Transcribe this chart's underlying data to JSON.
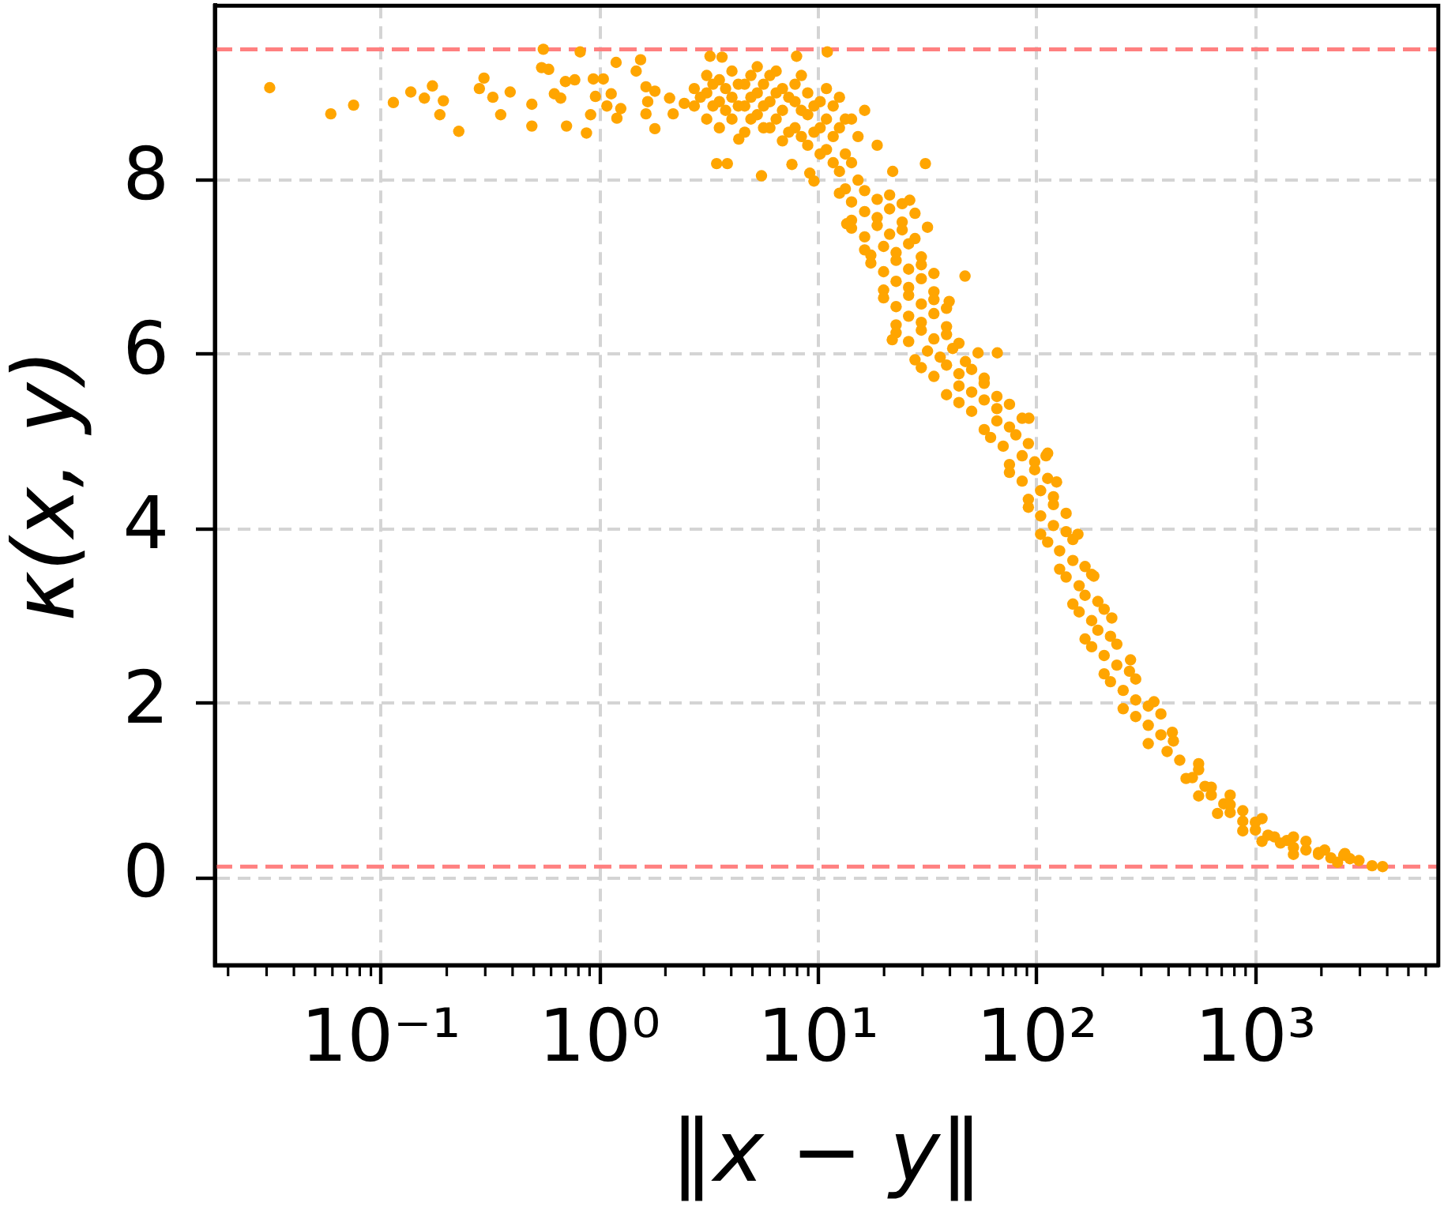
{
  "chart_data": {
    "type": "scatter",
    "xlabel": "‖x − y‖",
    "ylabel": "κ(x, y)",
    "color": "#ffa500",
    "marker": "circle",
    "log": "x",
    "grid": true,
    "xlim": [
      0.0174,
      6850
    ],
    "ylim": [
      -1,
      10
    ],
    "xticks": [
      {
        "value": 0.02,
        "label": null
      },
      {
        "value": 0.03,
        "label": null
      },
      {
        "value": 0.04,
        "label": null
      },
      {
        "value": 0.05,
        "label": null
      },
      {
        "value": 0.06,
        "label": null
      },
      {
        "value": 0.07,
        "label": null
      },
      {
        "value": 0.08,
        "label": null
      },
      {
        "value": 0.09,
        "label": null
      },
      {
        "value": 0.1,
        "label": "10⁻¹"
      },
      {
        "value": 0.2,
        "label": null
      },
      {
        "value": 0.3,
        "label": null
      },
      {
        "value": 0.4,
        "label": null
      },
      {
        "value": 0.5,
        "label": null
      },
      {
        "value": 0.6,
        "label": null
      },
      {
        "value": 0.7,
        "label": null
      },
      {
        "value": 0.8,
        "label": null
      },
      {
        "value": 0.9,
        "label": null
      },
      {
        "value": 1,
        "label": "10⁰"
      },
      {
        "value": 2,
        "label": null
      },
      {
        "value": 3,
        "label": null
      },
      {
        "value": 4,
        "label": null
      },
      {
        "value": 5,
        "label": null
      },
      {
        "value": 6,
        "label": null
      },
      {
        "value": 7,
        "label": null
      },
      {
        "value": 8,
        "label": null
      },
      {
        "value": 9,
        "label": null
      },
      {
        "value": 10,
        "label": "10¹"
      },
      {
        "value": 20,
        "label": null
      },
      {
        "value": 30,
        "label": null
      },
      {
        "value": 40,
        "label": null
      },
      {
        "value": 50,
        "label": null
      },
      {
        "value": 60,
        "label": null
      },
      {
        "value": 70,
        "label": null
      },
      {
        "value": 80,
        "label": null
      },
      {
        "value": 90,
        "label": null
      },
      {
        "value": 100,
        "label": "10²"
      },
      {
        "value": 200,
        "label": null
      },
      {
        "value": 300,
        "label": null
      },
      {
        "value": 400,
        "label": null
      },
      {
        "value": 500,
        "label": null
      },
      {
        "value": 600,
        "label": null
      },
      {
        "value": 700,
        "label": null
      },
      {
        "value": 800,
        "label": null
      },
      {
        "value": 900,
        "label": null
      },
      {
        "value": 1000,
        "label": "10³"
      },
      {
        "value": 2000,
        "label": null
      },
      {
        "value": 3000,
        "label": null
      },
      {
        "value": 4000,
        "label": null
      },
      {
        "value": 5000,
        "label": null
      },
      {
        "value": 6000,
        "label": null
      }
    ],
    "yticks": [
      0,
      2,
      4,
      6,
      8
    ],
    "ref_lines": [
      {
        "axis": "y",
        "value": 9.5,
        "color": "#ff8080",
        "line_style": "dashed"
      },
      {
        "axis": "y",
        "value": 0.13,
        "color": "#ff8080",
        "line_style": "dashed"
      }
    ],
    "x": [
      0.031,
      0.059,
      0.075,
      0.114,
      0.137,
      0.158,
      0.172,
      0.186,
      0.193,
      0.227,
      0.282,
      0.296,
      0.325,
      0.353,
      0.39,
      0.49,
      0.49,
      0.543,
      0.553,
      0.585,
      0.621,
      0.664,
      0.698,
      0.706,
      0.77,
      0.815,
      0.871,
      0.91,
      0.936,
      0.957,
      1.04,
      1.08,
      1.13,
      1.19,
      1.2,
      1.25,
      1.47,
      1.54,
      1.63,
      1.63,
      1.66,
      1.79,
      1.79,
      2.09,
      2.17,
      2.44,
      2.71,
      2.71,
      3.09,
      3.09,
      3.09,
      3.2,
      3.43,
      3.53,
      3.53,
      3.53,
      3.63,
      3.84,
      4.03,
      4.03,
      4.03,
      4.33,
      4.61,
      4.61,
      4.61,
      5.26,
      5.26,
      5.26,
      5.5,
      6.01,
      6.01,
      6.01,
      6.86,
      6.86,
      6.86,
      7.58,
      7.83,
      7.83,
      7.83,
      7.96,
      8.95,
      8.95,
      8.95,
      9.15,
      9.56,
      10.2,
      10.2,
      10.2,
      11,
      11.7,
      11.7,
      11.7,
      13.3,
      13.3,
      13.3,
      15.2,
      15.2,
      16.3,
      2.89,
      3.3,
      3.3,
      3.77,
      3.77,
      4.31,
      4.31,
      4.92,
      4.92,
      4.92,
      5.62,
      5.62,
      5.62,
      6.42,
      6.42,
      6.42,
      7.33,
      7.33,
      8.37,
      8.37,
      8.37,
      9.56,
      9.56,
      10.9,
      10.9,
      10.9,
      12.5,
      12.5,
      12.5,
      14.2,
      14.2,
      12.5,
      14.2,
      16.3,
      18.6,
      21.2,
      24.2,
      14.2,
      16.3,
      18.6,
      21.2,
      24.2,
      27.7,
      14.2,
      16.3,
      18.6,
      21.2,
      24.2,
      27.7,
      31.6,
      17.4,
      19.9,
      22.7,
      25.9,
      29.6,
      17.4,
      19.9,
      22.7,
      25.9,
      29.6,
      33.8,
      19.9,
      22.7,
      25.9,
      29.6,
      33.8,
      19.9,
      22.7,
      25.9,
      29.6,
      33.8,
      38.6,
      22.7,
      25.9,
      29.6,
      33.8,
      38.6,
      22.7,
      25.9,
      29.6,
      33.8,
      38.6,
      44,
      27.7,
      31.6,
      36.1,
      41.2,
      47.1,
      53.8,
      29.6,
      33.8,
      38.6,
      44,
      50.3,
      57.4,
      38.6,
      44,
      50.3,
      57.4,
      65.6,
      44,
      50.3,
      57.4,
      65.6,
      74.9,
      57.4,
      65.6,
      74.9,
      85.6,
      61.4,
      70.1,
      80.1,
      91.4,
      74.9,
      85.6,
      97.7,
      112,
      74.9,
      85.6,
      97.7,
      112,
      91.4,
      104,
      119,
      91.4,
      104,
      119,
      136,
      104,
      119,
      136,
      112,
      127,
      146,
      127,
      146,
      166,
      136,
      156,
      178,
      146,
      166,
      190,
      156,
      178,
      203,
      166,
      190,
      217,
      178,
      203,
      232,
      203,
      232,
      265,
      217,
      248,
      283,
      248,
      283,
      323,
      283,
      323,
      369,
      323,
      369,
      421,
      394,
      450,
      481,
      549,
      514,
      587,
      549,
      627,
      627,
      716,
      670,
      765,
      874,
      765,
      874,
      874,
      998,
      998,
      1140,
      1070,
      1220,
      1390,
      1300,
      1490,
      1700,
      1490,
      1700,
      1940,
      1940,
      2210,
      2530,
      2370,
      2700,
      13.5,
      16.3,
      18.6,
      21.8,
      21.9,
      26.2,
      30.9,
      39.7,
      46.9,
      65.9,
      91.9,
      110,
      123,
      154,
      182,
      220,
      268,
      343,
      416,
      549,
      765,
      1070,
      1490,
      2070,
      2560,
      2970,
      3410,
      3810
    ],
    "values": [
      9.06,
      8.76,
      8.86,
      8.89,
      9.01,
      8.94,
      9.08,
      8.75,
      8.91,
      8.56,
      9.05,
      9.17,
      8.95,
      8.75,
      9.01,
      8.87,
      8.62,
      9.29,
      9.5,
      9.27,
      8.99,
      8.94,
      9.13,
      8.62,
      9.15,
      9.47,
      8.54,
      8.75,
      9.16,
      8.96,
      9.16,
      8.85,
      8.99,
      9.35,
      8.71,
      8.82,
      9.25,
      9.38,
      9.07,
      8.76,
      8.9,
      9.02,
      8.59,
      8.94,
      8.76,
      8.88,
      8.85,
      9.05,
      8.7,
      9.0,
      9.2,
      9.42,
      8.19,
      8.6,
      8.9,
      9.15,
      9.41,
      8.19,
      8.7,
      8.95,
      9.25,
      8.47,
      8.55,
      8.85,
      9.1,
      8.75,
      9.0,
      9.3,
      8.05,
      8.6,
      8.9,
      9.2,
      8.45,
      8.8,
      9.05,
      8.18,
      8.6,
      8.9,
      9.1,
      9.42,
      8.4,
      8.75,
      9.0,
      8.08,
      7.99,
      8.3,
      8.6,
      8.9,
      9.47,
      8.2,
      8.5,
      8.85,
      7.9,
      8.3,
      8.7,
      8.0,
      8.5,
      8.8,
      8.95,
      8.85,
      9.1,
      8.8,
      9.05,
      8.85,
      9.1,
      8.7,
      8.95,
      9.2,
      8.6,
      8.85,
      9.1,
      8.7,
      9.0,
      9.25,
      8.55,
      8.95,
      8.5,
      8.8,
      9.2,
      8.55,
      8.85,
      8.35,
      8.7,
      9.05,
      8.1,
      8.6,
      8.95,
      8.2,
      8.7,
      7.85,
      7.75,
      7.88,
      7.78,
      7.83,
      7.73,
      7.54,
      7.64,
      7.57,
      7.67,
      7.52,
      7.62,
      7.45,
      7.35,
      7.48,
      7.38,
      7.43,
      7.33,
      7.46,
      7.14,
      7.24,
      7.17,
      7.27,
      7.12,
      7.05,
      6.95,
      7.08,
      6.98,
      7.03,
      6.93,
      6.74,
      6.84,
      6.77,
      6.87,
      6.72,
      6.65,
      6.55,
      6.68,
      6.58,
      6.63,
      6.53,
      6.34,
      6.44,
      6.37,
      6.47,
      6.32,
      6.25,
      6.15,
      6.28,
      6.18,
      6.23,
      6.13,
      5.94,
      6.04,
      5.97,
      6.07,
      5.92,
      6.02,
      5.85,
      5.75,
      5.88,
      5.78,
      5.83,
      5.73,
      5.54,
      5.64,
      5.57,
      5.67,
      5.52,
      5.45,
      5.35,
      5.48,
      5.38,
      5.43,
      5.14,
      5.24,
      5.17,
      5.27,
      5.05,
      4.95,
      5.08,
      4.98,
      4.74,
      4.84,
      4.77,
      4.87,
      4.65,
      4.55,
      4.68,
      4.58,
      4.34,
      4.44,
      4.37,
      4.25,
      4.15,
      4.28,
      4.18,
      3.94,
      4.04,
      3.97,
      3.85,
      3.75,
      3.88,
      3.54,
      3.64,
      3.57,
      3.45,
      3.35,
      3.48,
      3.14,
      3.24,
      3.17,
      3.05,
      2.95,
      3.08,
      2.74,
      2.84,
      2.77,
      2.65,
      2.55,
      2.68,
      2.34,
      2.44,
      2.37,
      2.25,
      2.15,
      2.28,
      1.94,
      2.04,
      1.97,
      1.85,
      1.75,
      1.88,
      1.54,
      1.64,
      1.57,
      1.45,
      1.35,
      1.14,
      1.24,
      1.15,
      1.05,
      0.94,
      1.04,
      0.95,
      0.85,
      0.74,
      0.84,
      0.77,
      0.75,
      0.65,
      0.54,
      0.64,
      0.55,
      0.49,
      0.42,
      0.47,
      0.43,
      0.4,
      0.35,
      0.42,
      0.27,
      0.32,
      0.29,
      0.27,
      0.23,
      0.26,
      0.18,
      0.22,
      7.5,
      7.2,
      8.4,
      6.17,
      8.1,
      7.77,
      8.19,
      6.61,
      6.9,
      6.02,
      5.27,
      4.84,
      4.54,
      3.94,
      3.46,
      2.98,
      2.5,
      2.02,
      1.67,
      1.31,
      0.95,
      0.68,
      0.47,
      0.32,
      0.28,
      0.2,
      0.14,
      0.13
    ]
  }
}
